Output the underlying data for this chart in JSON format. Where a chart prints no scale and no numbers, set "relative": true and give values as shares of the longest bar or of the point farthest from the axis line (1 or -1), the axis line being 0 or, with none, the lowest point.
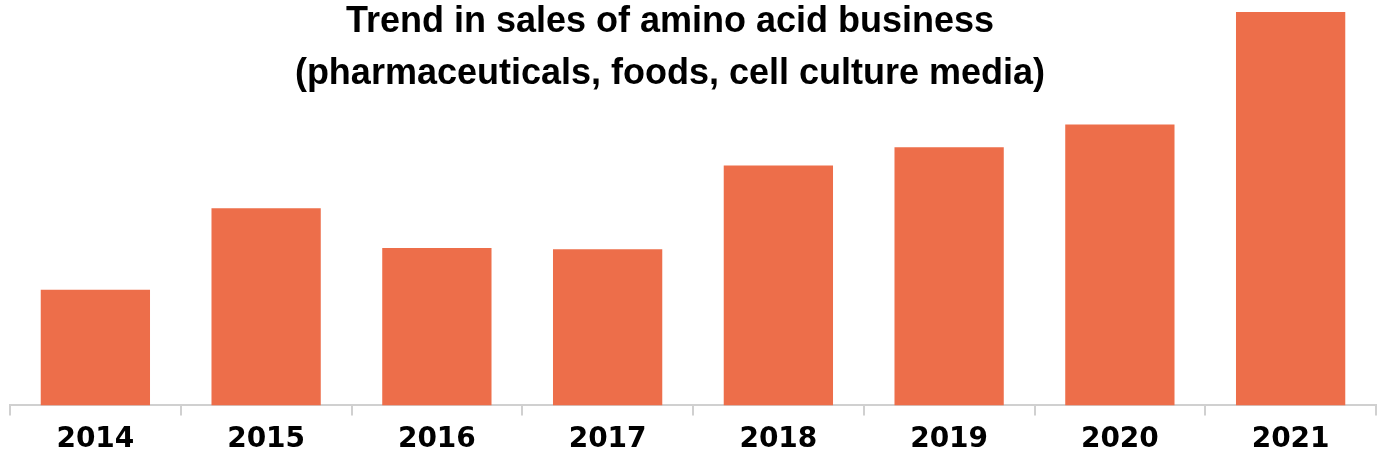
{
  "chart_data": {
    "type": "bar",
    "title": "Trend in sales of amino acid business\n(pharmaceuticals, foods, cell culture media)",
    "categories": [
      "2014",
      "2015",
      "2016",
      "2017",
      "2018",
      "2019",
      "2020",
      "2021"
    ],
    "values": [
      0.294,
      0.501,
      0.4,
      0.397,
      0.61,
      0.656,
      0.714,
      1
    ],
    "color": "#ed6e4a",
    "relative": true,
    "legend": false,
    "grid": false
  }
}
